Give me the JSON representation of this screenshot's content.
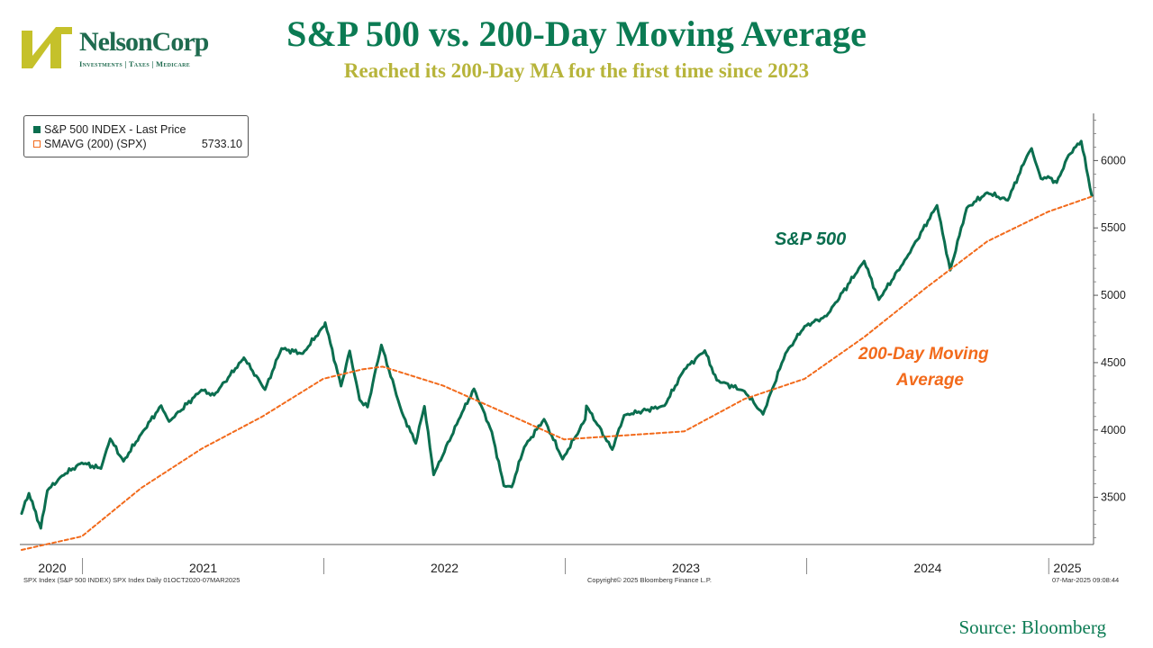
{
  "logo": {
    "name": "NelsonCorp",
    "tagline": "Investments | Taxes | Medicare"
  },
  "title": "S&P 500 vs. 200-Day Moving Average",
  "subtitle": "Reached its 200-Day MA for the first time since 2023",
  "source": "Source: Bloomberg",
  "footer": {
    "left": "SPX Index (S&P 500 INDEX) SPX Index  Daily 01OCT2020-07MAR2025",
    "center": "Copyright© 2025 Bloomberg Finance L.P.",
    "right": "07-Mar-2025 09:08:44"
  },
  "annotations": {
    "sp500": "S&P 500",
    "ma_line1": "200-Day Moving",
    "ma_line2": "Average"
  },
  "colors": {
    "sp500": "#0b6e4f",
    "ma": "#f26a1b",
    "title": "#0b7b53",
    "subtitle": "#b7b43a",
    "logo_mark": "#c5c12a"
  },
  "chart_data": {
    "type": "line",
    "title": "S&P 500 vs. 200-Day Moving Average",
    "x_range": [
      "2020-10-01",
      "2025-03-07"
    ],
    "ylim": [
      3150,
      6350
    ],
    "y_ticks": [
      3500,
      4000,
      4500,
      5000,
      5500,
      6000
    ],
    "year_labels": [
      "2020",
      "2021",
      "2022",
      "2023",
      "2024",
      "2025"
    ],
    "grid": false,
    "legend_position": "top-left",
    "legend": [
      {
        "label": "S&P 500 INDEX - Last Price",
        "value": ""
      },
      {
        "label": "SMAVG (200) (SPX)",
        "value": "5733.10"
      }
    ],
    "series": [
      {
        "name": "S&P 500 INDEX - Last Price",
        "x": [
          "2020-10-01",
          "2020-10-12",
          "2020-10-30",
          "2020-11-09",
          "2020-12-01",
          "2020-12-31",
          "2021-01-29",
          "2021-02-12",
          "2021-03-04",
          "2021-03-31",
          "2021-04-30",
          "2021-05-12",
          "2021-06-30",
          "2021-07-19",
          "2021-08-31",
          "2021-09-02",
          "2021-10-04",
          "2021-10-29",
          "2021-11-30",
          "2021-12-31",
          "2022-01-03",
          "2022-01-27",
          "2022-02-09",
          "2022-02-24",
          "2022-03-08",
          "2022-03-29",
          "2022-04-29",
          "2022-05-20",
          "2022-06-02",
          "2022-06-16",
          "2022-07-29",
          "2022-08-16",
          "2022-09-12",
          "2022-09-30",
          "2022-10-12",
          "2022-10-31",
          "2022-11-30",
          "2022-12-28",
          "2023-01-31",
          "2023-02-02",
          "2023-03-13",
          "2023-03-31",
          "2023-05-31",
          "2023-06-30",
          "2023-07-31",
          "2023-08-18",
          "2023-09-29",
          "2023-10-27",
          "2023-11-30",
          "2023-12-29",
          "2024-01-31",
          "2024-03-28",
          "2024-04-19",
          "2024-05-31",
          "2024-07-16",
          "2024-08-05",
          "2024-08-30",
          "2024-09-30",
          "2024-10-31",
          "2024-11-29",
          "2024-12-06",
          "2024-12-20",
          "2024-12-31",
          "2025-01-13",
          "2025-01-31",
          "2025-02-19",
          "2025-03-07"
        ],
        "values": [
          3380,
          3530,
          3270,
          3550,
          3660,
          3756,
          3714,
          3934,
          3768,
          3972,
          4181,
          4063,
          4297,
          4258,
          4522,
          4537,
          4300,
          4605,
          4567,
          4766,
          4797,
          4326,
          4587,
          4225,
          4170,
          4631,
          4131,
          3901,
          4176,
          3667,
          4130,
          4305,
          3986,
          3586,
          3577,
          3872,
          4080,
          3783,
          4077,
          4179,
          3855,
          4109,
          4180,
          4450,
          4589,
          4370,
          4288,
          4117,
          4568,
          4770,
          4846,
          5254,
          4967,
          5278,
          5667,
          5186,
          5648,
          5762,
          5705,
          6032,
          6090,
          5867,
          5882,
          5836,
          6040,
          6144,
          5740
        ]
      },
      {
        "name": "SMAVG (200) (SPX)",
        "x": [
          "2020-10-01",
          "2020-12-31",
          "2021-03-31",
          "2021-06-30",
          "2021-09-30",
          "2021-12-31",
          "2022-02-28",
          "2022-03-31",
          "2022-06-30",
          "2022-09-30",
          "2022-12-30",
          "2023-03-31",
          "2023-06-30",
          "2023-09-29",
          "2023-12-29",
          "2024-03-28",
          "2024-06-28",
          "2024-09-30",
          "2024-12-31",
          "2025-03-07"
        ],
        "values": [
          3110,
          3210,
          3570,
          3860,
          4100,
          4380,
          4450,
          4470,
          4330,
          4130,
          3930,
          3960,
          3990,
          4230,
          4380,
          4690,
          5050,
          5400,
          5620,
          5733
        ]
      }
    ]
  }
}
